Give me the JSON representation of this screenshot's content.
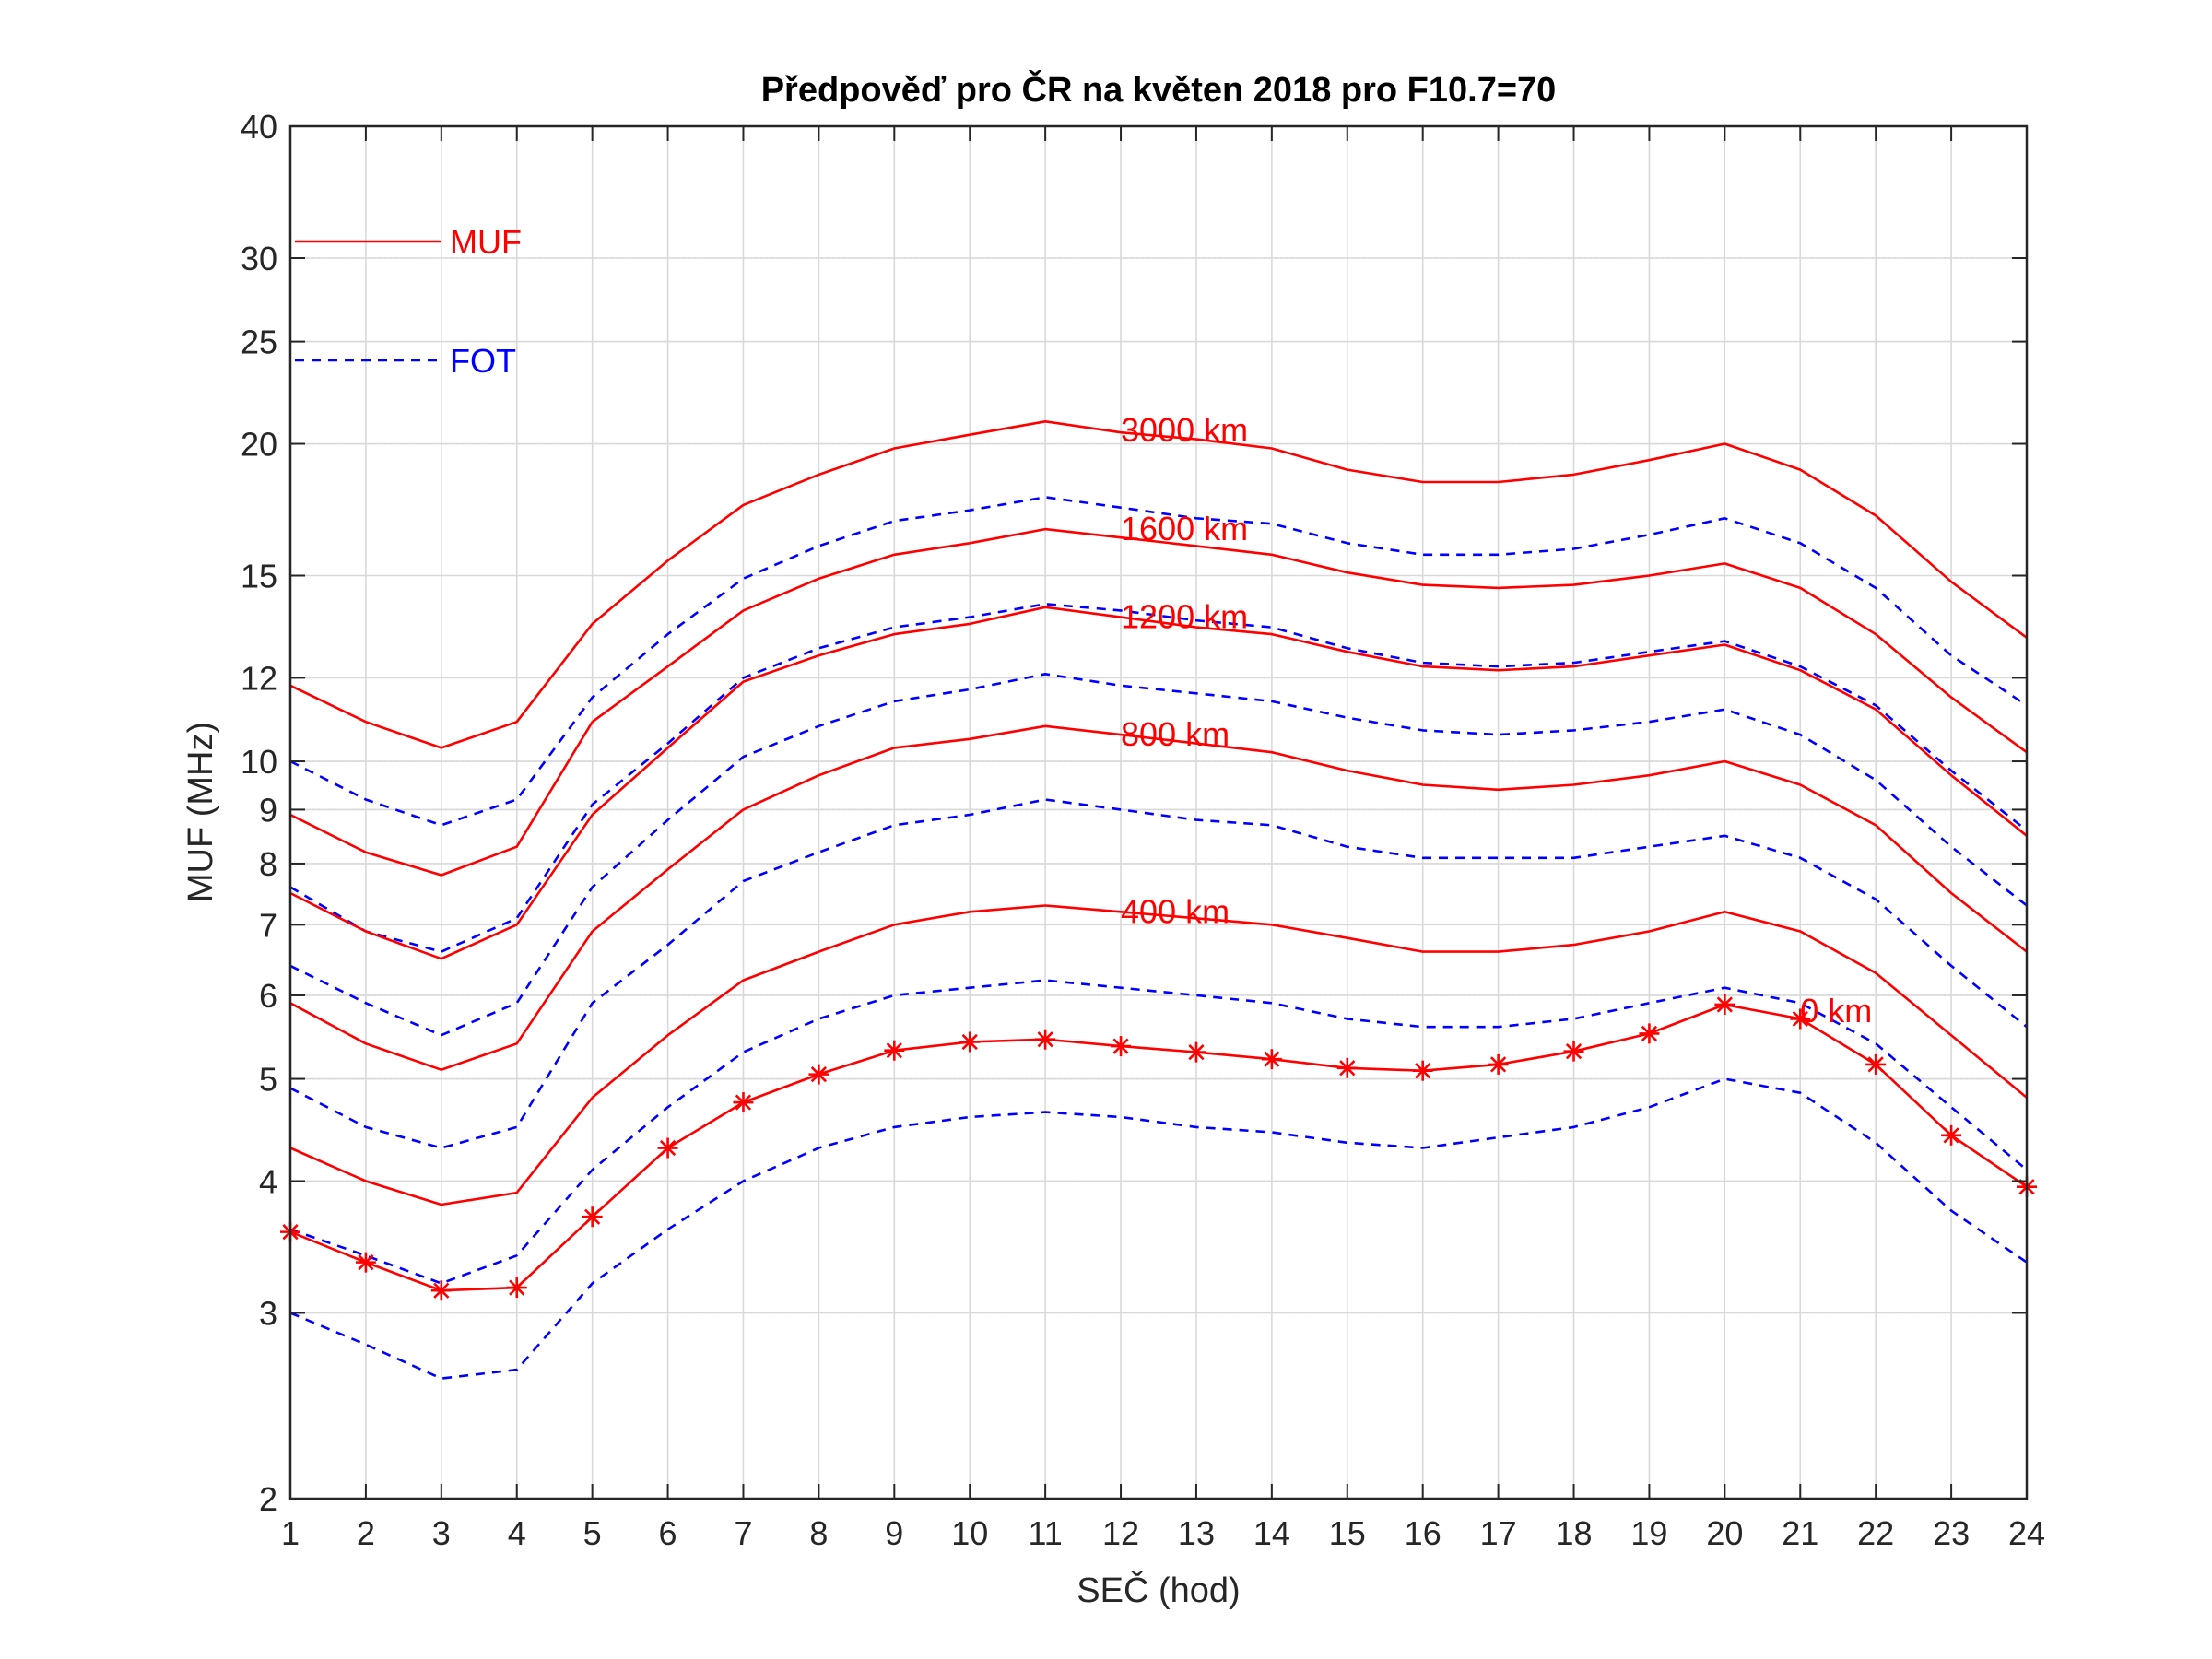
{
  "chart_data": {
    "type": "line",
    "title": "Předpověď pro ČR na květen 2018 pro F10.7=70",
    "xlabel": "SEČ (hod)",
    "ylabel": "MUF (MHz)",
    "xlim": [
      1,
      24
    ],
    "ylim": [
      2,
      40
    ],
    "yscale": "log",
    "grid": true,
    "x": [
      1,
      2,
      3,
      4,
      5,
      6,
      7,
      8,
      9,
      10,
      11,
      12,
      13,
      14,
      15,
      16,
      17,
      18,
      19,
      20,
      21,
      22,
      23,
      24
    ],
    "xticks": [
      "1",
      "2",
      "3",
      "4",
      "5",
      "6",
      "7",
      "8",
      "9",
      "10",
      "11",
      "12",
      "13",
      "14",
      "15",
      "16",
      "17",
      "18",
      "19",
      "20",
      "21",
      "22",
      "23",
      "24"
    ],
    "yticks": [
      2,
      3,
      4,
      5,
      6,
      7,
      8,
      9,
      10,
      12,
      15,
      20,
      25,
      30,
      40
    ],
    "ytick_labels": [
      "2",
      "3",
      "4",
      "5",
      "6",
      "7",
      "8",
      "9",
      "10",
      "12",
      "15",
      "20",
      "25",
      "30",
      "40"
    ],
    "legend": {
      "placement": "top-left",
      "entries": [
        {
          "label": "MUF",
          "color": "#ff0000",
          "style": "solid"
        },
        {
          "label": "FOT",
          "color": "#0000ff",
          "style": "dashed"
        }
      ]
    },
    "colors": {
      "muf": "#ff0000",
      "fot": "#0000ff",
      "grid": "#d9d9d9"
    },
    "series": [
      {
        "kind": "MUF",
        "values": [
          11.8,
          10.9,
          10.3,
          10.9,
          13.5,
          15.5,
          17.5,
          18.7,
          19.8,
          20.4,
          21.0,
          20.5,
          20.2,
          19.8,
          18.9,
          18.4,
          18.4,
          18.7,
          19.3,
          20.0,
          18.9,
          17.1,
          14.8,
          13.1
        ]
      },
      {
        "kind": "FOT",
        "values": [
          10.0,
          9.2,
          8.7,
          9.2,
          11.5,
          13.2,
          14.9,
          16.0,
          16.9,
          17.3,
          17.8,
          17.4,
          17.0,
          16.8,
          16.1,
          15.7,
          15.7,
          15.9,
          16.4,
          17.0,
          16.1,
          14.6,
          12.6,
          11.3
        ]
      },
      {
        "kind": "MUF",
        "values": [
          8.9,
          8.2,
          7.8,
          8.3,
          10.9,
          12.3,
          13.9,
          14.9,
          15.7,
          16.1,
          16.6,
          16.3,
          16.0,
          15.7,
          15.1,
          14.7,
          14.6,
          14.7,
          15.0,
          15.4,
          14.6,
          13.2,
          11.5,
          10.2
        ]
      },
      {
        "kind": "FOT",
        "values": [
          7.6,
          6.9,
          6.6,
          7.1,
          9.1,
          10.4,
          12.0,
          12.8,
          13.4,
          13.7,
          14.1,
          13.9,
          13.6,
          13.4,
          12.8,
          12.4,
          12.3,
          12.4,
          12.7,
          13.0,
          12.3,
          11.3,
          9.8,
          8.6
        ]
      },
      {
        "kind": "MUF",
        "values": [
          7.5,
          6.9,
          6.5,
          7.0,
          8.9,
          10.3,
          11.9,
          12.6,
          13.2,
          13.5,
          14.0,
          13.7,
          13.4,
          13.2,
          12.7,
          12.3,
          12.2,
          12.3,
          12.6,
          12.9,
          12.2,
          11.2,
          9.7,
          8.5
        ]
      },
      {
        "kind": "FOT",
        "values": [
          6.4,
          5.9,
          5.5,
          5.9,
          7.6,
          8.8,
          10.1,
          10.8,
          11.4,
          11.7,
          12.1,
          11.8,
          11.6,
          11.4,
          11.0,
          10.7,
          10.6,
          10.7,
          10.9,
          11.2,
          10.6,
          9.6,
          8.3,
          7.3
        ]
      },
      {
        "kind": "MUF",
        "values": [
          5.9,
          5.4,
          5.1,
          5.4,
          6.9,
          7.9,
          9.0,
          9.7,
          10.3,
          10.5,
          10.8,
          10.6,
          10.4,
          10.2,
          9.8,
          9.5,
          9.4,
          9.5,
          9.7,
          10.0,
          9.5,
          8.7,
          7.5,
          6.6
        ]
      },
      {
        "kind": "FOT",
        "values": [
          4.9,
          4.5,
          4.3,
          4.5,
          5.9,
          6.7,
          7.7,
          8.2,
          8.7,
          8.9,
          9.2,
          9.0,
          8.8,
          8.7,
          8.3,
          8.1,
          8.1,
          8.1,
          8.3,
          8.5,
          8.1,
          7.4,
          6.4,
          5.6
        ]
      },
      {
        "kind": "MUF",
        "values": [
          4.3,
          4.0,
          3.8,
          3.9,
          4.8,
          5.5,
          6.2,
          6.6,
          7.0,
          7.2,
          7.3,
          7.2,
          7.1,
          7.0,
          6.8,
          6.6,
          6.6,
          6.7,
          6.9,
          7.2,
          6.9,
          6.3,
          5.5,
          4.8
        ]
      },
      {
        "kind": "FOT",
        "values": [
          3.6,
          3.4,
          3.2,
          3.4,
          4.1,
          4.7,
          5.3,
          5.7,
          6.0,
          6.1,
          6.2,
          6.1,
          6.0,
          5.9,
          5.7,
          5.6,
          5.6,
          5.7,
          5.9,
          6.1,
          5.9,
          5.4,
          4.7,
          4.1
        ]
      },
      {
        "kind": "MUF",
        "marker": "star",
        "values": [
          3.58,
          3.35,
          3.15,
          3.17,
          3.7,
          4.3,
          4.75,
          5.05,
          5.32,
          5.42,
          5.45,
          5.37,
          5.3,
          5.22,
          5.12,
          5.09,
          5.16,
          5.31,
          5.52,
          5.88,
          5.7,
          5.16,
          4.42,
          3.95
        ]
      },
      {
        "kind": "FOT",
        "values": [
          3.0,
          2.8,
          2.6,
          2.65,
          3.2,
          3.6,
          4.0,
          4.3,
          4.5,
          4.6,
          4.65,
          4.6,
          4.5,
          4.45,
          4.35,
          4.3,
          4.4,
          4.5,
          4.7,
          5.0,
          4.85,
          4.35,
          3.75,
          3.35
        ]
      }
    ],
    "annotations": [
      {
        "text": "3000 km",
        "x": 12.0,
        "y": 20.6
      },
      {
        "text": "1600 km",
        "x": 12.0,
        "y": 16.6
      },
      {
        "text": "1200 km",
        "x": 12.0,
        "y": 13.7
      },
      {
        "text": "800 km",
        "x": 12.0,
        "y": 10.6
      },
      {
        "text": "400 km",
        "x": 12.0,
        "y": 7.2
      },
      {
        "text": "0 km",
        "x": 21.0,
        "y": 5.8
      }
    ]
  }
}
